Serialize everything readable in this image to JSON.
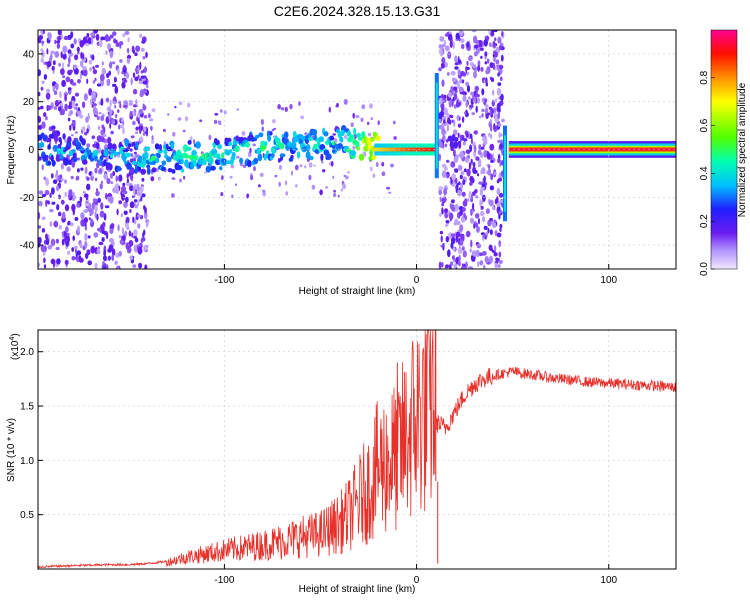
{
  "figure_title": "C2E6.2024.328.15.13.G31",
  "colors": {
    "snr_line": "#e8302a",
    "axis": "#000000",
    "grid": "#bbbbbb",
    "noise": "#9b66ff"
  },
  "chart_data": [
    {
      "type": "heatmap",
      "title": "C2E6.2024.328.15.13.G31",
      "xlabel": "Height of straight line (km)",
      "ylabel": "Frequency (Hz)",
      "xlim": [
        -197,
        135
      ],
      "ylim": [
        -50,
        50
      ],
      "xticks": [
        -100,
        0,
        100
      ],
      "xtick_labels": [
        "-100",
        "0",
        "100"
      ],
      "yticks": [
        -40,
        -20,
        0,
        20,
        40
      ],
      "ytick_labels": [
        "-40",
        "-20",
        "0",
        "20",
        "40"
      ],
      "colorbar": {
        "label": "Normalized spectral amplitude",
        "range": [
          0,
          1
        ],
        "ticks": [
          0.0,
          0.2,
          0.4,
          0.6,
          0.8
        ],
        "tick_labels": [
          "0.0",
          "0.2",
          "0.4",
          "0.6",
          "0.8"
        ]
      },
      "ridge": [
        {
          "x": -195,
          "f": 0,
          "amp": 0.35
        },
        {
          "x": -170,
          "f": -1,
          "amp": 0.3
        },
        {
          "x": -140,
          "f": -4,
          "amp": 0.4
        },
        {
          "x": -120,
          "f": -3,
          "amp": 0.45
        },
        {
          "x": -100,
          "f": -2,
          "amp": 0.4
        },
        {
          "x": -80,
          "f": 1,
          "amp": 0.42
        },
        {
          "x": -60,
          "f": 2,
          "amp": 0.4
        },
        {
          "x": -40,
          "f": 3,
          "amp": 0.38
        },
        {
          "x": -25,
          "f": 1,
          "amp": 0.7
        },
        {
          "x": -5,
          "f": 0,
          "amp": 0.85
        },
        {
          "x": 8,
          "f": 0,
          "amp": 0.9
        },
        {
          "x": 50,
          "f": 0,
          "amp": 0.95
        },
        {
          "x": 135,
          "f": 0,
          "amp": 0.95
        }
      ],
      "noise_bands": [
        [
          -197,
          -140
        ],
        [
          12,
          45
        ]
      ]
    },
    {
      "type": "line",
      "title": "",
      "xlabel": "Height of straight line (km)",
      "ylabel": "SNR (10 * v/v)",
      "multiplier_label": "(x10",
      "multiplier_exp": "4",
      "xlim": [
        -197,
        135
      ],
      "ylim": [
        0,
        2.2
      ],
      "xticks": [
        -100,
        0,
        100
      ],
      "xtick_labels": [
        "-100",
        "0",
        "100"
      ],
      "yticks": [
        0.5,
        1.0,
        1.5,
        2.0
      ],
      "ytick_labels": [
        "0.5",
        "1.0",
        "1.5",
        "2.0"
      ],
      "series": [
        {
          "name": "SNR",
          "x": [
            -197,
            -180,
            -160,
            -150,
            -140,
            -130,
            -120,
            -110,
            -100,
            -90,
            -80,
            -70,
            -60,
            -50,
            -40,
            -35,
            -30,
            -25,
            -20,
            -15,
            -10,
            -5,
            0,
            5,
            10,
            15,
            20,
            25,
            30,
            35,
            40,
            45,
            50,
            55,
            60,
            70,
            80,
            90,
            100,
            110,
            120,
            130,
            135
          ],
          "y": [
            0.02,
            0.03,
            0.04,
            0.04,
            0.05,
            0.07,
            0.12,
            0.15,
            0.18,
            0.2,
            0.22,
            0.25,
            0.28,
            0.3,
            0.38,
            0.45,
            0.55,
            0.65,
            0.8,
            0.85,
            0.9,
            1.05,
            1.2,
            1.3,
            1.35,
            1.3,
            1.45,
            1.6,
            1.7,
            1.75,
            1.78,
            1.8,
            1.82,
            1.8,
            1.79,
            1.76,
            1.74,
            1.72,
            1.71,
            1.7,
            1.69,
            1.68,
            1.67
          ]
        }
      ],
      "spike_markers": [
        {
          "x": -10,
          "y": 1.9
        },
        {
          "x": 10,
          "y": 2.2
        },
        {
          "x": 11,
          "y": 0.05
        }
      ]
    }
  ]
}
